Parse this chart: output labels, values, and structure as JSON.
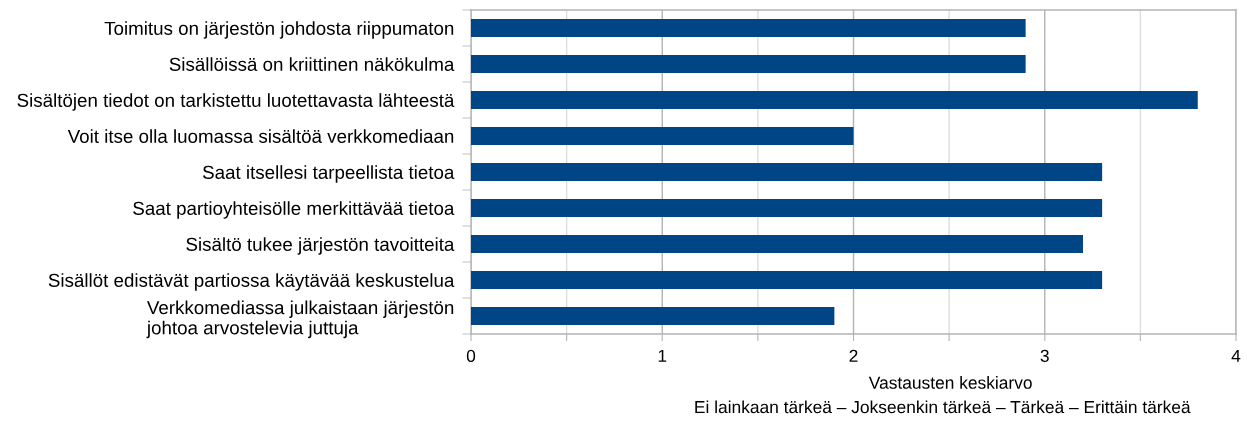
{
  "chart_data": {
    "type": "bar",
    "orientation": "horizontal",
    "categories": [
      "Toimitus on järjestön johdosta riippumaton",
      "Sisällöissä on kriittinen näkökulma",
      "Sisältöjen tiedot on tarkistettu luotettavasta lähteestä",
      "Voit itse olla luomassa sisältöä verkkomediaan",
      "Saat itsellesi tarpeellista tietoa",
      "Saat partioyhteisölle merkittävää tietoa",
      "Sisältö tukee järjestön tavoitteita",
      "Sisällöt edistävät partiossa käytävää keskustelua",
      "Verkkomediassa julkaistaan järjestön\njohtoa arvostelevia juttuja"
    ],
    "values": [
      2.9,
      2.9,
      3.8,
      2.0,
      3.3,
      3.3,
      3.2,
      3.3,
      1.9
    ],
    "color": "#004586",
    "xlim": [
      0,
      4
    ],
    "xticks": [
      0,
      {
        "value": 0.5,
        "label": null
      },
      1,
      {
        "value": 1.5,
        "label": null
      },
      2,
      {
        "value": 2.5,
        "label": null
      },
      3,
      {
        "value": 3.5,
        "label": null
      },
      4
    ],
    "xlabel": "Vastausten keskiarvo",
    "annotations": [
      "Ei lainkaan tärkeä – Jokseenkin tärkeä – Tärkeä – Erittäin tärkeä"
    ],
    "grid": "x"
  }
}
